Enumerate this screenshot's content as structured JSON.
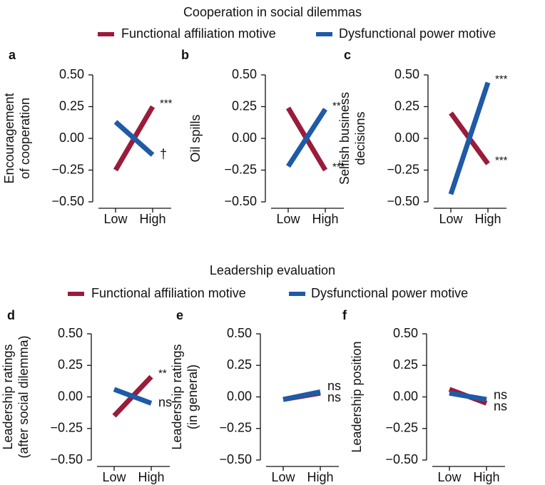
{
  "section_titles": [
    "Cooperation in social dilemmas",
    "Leadership evaluation"
  ],
  "chart_data": [
    {
      "type": "line",
      "panel": "a",
      "ylabel": [
        "Encouragement",
        "of cooperation"
      ],
      "categories": [
        "Low",
        "High"
      ],
      "ylim": [
        -0.5,
        0.5
      ],
      "yticks": [
        {
          "value": 0.5,
          "label": "0.50"
        },
        {
          "value": 0.25,
          "label": "0.25"
        },
        {
          "value": 0,
          "label": "0.00"
        },
        {
          "value": -0.25,
          "label": "−0.25"
        },
        {
          "value": -0.5,
          "label": "−0.50"
        }
      ],
      "series": [
        {
          "name": "Functional affiliation motive",
          "color": "#9b1b3a",
          "values": [
            -0.25,
            0.25
          ],
          "annotation": "***"
        },
        {
          "name": "Dysfunctional power motive",
          "color": "#1f5aa6",
          "values": [
            0.13,
            -0.13
          ],
          "annotation": "†"
        }
      ]
    },
    {
      "type": "line",
      "panel": "b",
      "ylabel": [
        "Oil spills"
      ],
      "categories": [
        "Low",
        "High"
      ],
      "ylim": [
        -0.5,
        0.5
      ],
      "yticks": [
        {
          "value": 0.5,
          "label": "0.50"
        },
        {
          "value": 0.25,
          "label": "0.25"
        },
        {
          "value": 0,
          "label": "0.00"
        },
        {
          "value": -0.25,
          "label": "−0.25"
        },
        {
          "value": -0.5,
          "label": "−0.50"
        }
      ],
      "series": [
        {
          "name": "Functional affiliation motive",
          "color": "#9b1b3a",
          "values": [
            0.24,
            -0.25
          ],
          "annotation": "***"
        },
        {
          "name": "Dysfunctional power motive",
          "color": "#1f5aa6",
          "values": [
            -0.22,
            0.23
          ],
          "annotation": "**"
        }
      ]
    },
    {
      "type": "line",
      "panel": "c",
      "ylabel": [
        "Selfish business",
        "decisions"
      ],
      "categories": [
        "Low",
        "High"
      ],
      "ylim": [
        -0.5,
        0.5
      ],
      "yticks": [
        {
          "value": 0.5,
          "label": "0.50"
        },
        {
          "value": 0.25,
          "label": "0.25"
        },
        {
          "value": 0,
          "label": "0.00"
        },
        {
          "value": -0.25,
          "label": "−0.25"
        },
        {
          "value": -0.5,
          "label": "−0.50"
        }
      ],
      "series": [
        {
          "name": "Functional affiliation motive",
          "color": "#9b1b3a",
          "values": [
            0.2,
            -0.2
          ],
          "annotation": "***"
        },
        {
          "name": "Dysfunctional power motive",
          "color": "#1f5aa6",
          "values": [
            -0.44,
            0.44
          ],
          "annotation": "***"
        }
      ]
    },
    {
      "type": "line",
      "panel": "d",
      "ylabel": [
        "Leadership ratings",
        "(after social dilemma)"
      ],
      "categories": [
        "Low",
        "High"
      ],
      "ylim": [
        -0.5,
        0.5
      ],
      "yticks": [
        {
          "value": 0.5,
          "label": "0.50"
        },
        {
          "value": 0.25,
          "label": "0.25"
        },
        {
          "value": 0,
          "label": "0.00"
        },
        {
          "value": -0.25,
          "label": "−0.25"
        },
        {
          "value": -0.5,
          "label": "−0.50"
        }
      ],
      "series": [
        {
          "name": "Functional affiliation motive",
          "color": "#9b1b3a",
          "values": [
            -0.15,
            0.16
          ],
          "annotation": "**"
        },
        {
          "name": "Dysfunctional power motive",
          "color": "#1f5aa6",
          "values": [
            0.06,
            -0.05
          ],
          "annotation": "ns"
        }
      ]
    },
    {
      "type": "line",
      "panel": "e",
      "ylabel": [
        "Leadership ratings",
        "(in general)"
      ],
      "categories": [
        "Low",
        "High"
      ],
      "ylim": [
        -0.5,
        0.5
      ],
      "yticks": [
        {
          "value": 0.5,
          "label": "0.50"
        },
        {
          "value": 0.25,
          "label": "0.25"
        },
        {
          "value": 0,
          "label": "0.00"
        },
        {
          "value": -0.25,
          "label": "−0.25"
        },
        {
          "value": -0.5,
          "label": "−0.50"
        }
      ],
      "series": [
        {
          "name": "Functional affiliation motive",
          "color": "#9b1b3a",
          "values": [
            -0.02,
            0.03
          ],
          "annotation": "ns"
        },
        {
          "name": "Dysfunctional power motive",
          "color": "#1f5aa6",
          "values": [
            -0.02,
            0.04
          ],
          "annotation": "ns"
        }
      ]
    },
    {
      "type": "line",
      "panel": "f",
      "ylabel": [
        "Leadership position"
      ],
      "categories": [
        "Low",
        "High"
      ],
      "ylim": [
        -0.5,
        0.5
      ],
      "yticks": [
        {
          "value": 0.5,
          "label": "0.50"
        },
        {
          "value": 0.25,
          "label": "0.25"
        },
        {
          "value": 0,
          "label": "0.00"
        },
        {
          "value": -0.25,
          "label": "−0.25"
        },
        {
          "value": -0.5,
          "label": "−0.50"
        }
      ],
      "series": [
        {
          "name": "Functional affiliation motive",
          "color": "#9b1b3a",
          "values": [
            0.06,
            -0.05
          ],
          "annotation": "ns"
        },
        {
          "name": "Dysfunctional power motive",
          "color": "#1f5aa6",
          "values": [
            0.03,
            -0.02
          ],
          "annotation": "ns"
        }
      ]
    }
  ]
}
